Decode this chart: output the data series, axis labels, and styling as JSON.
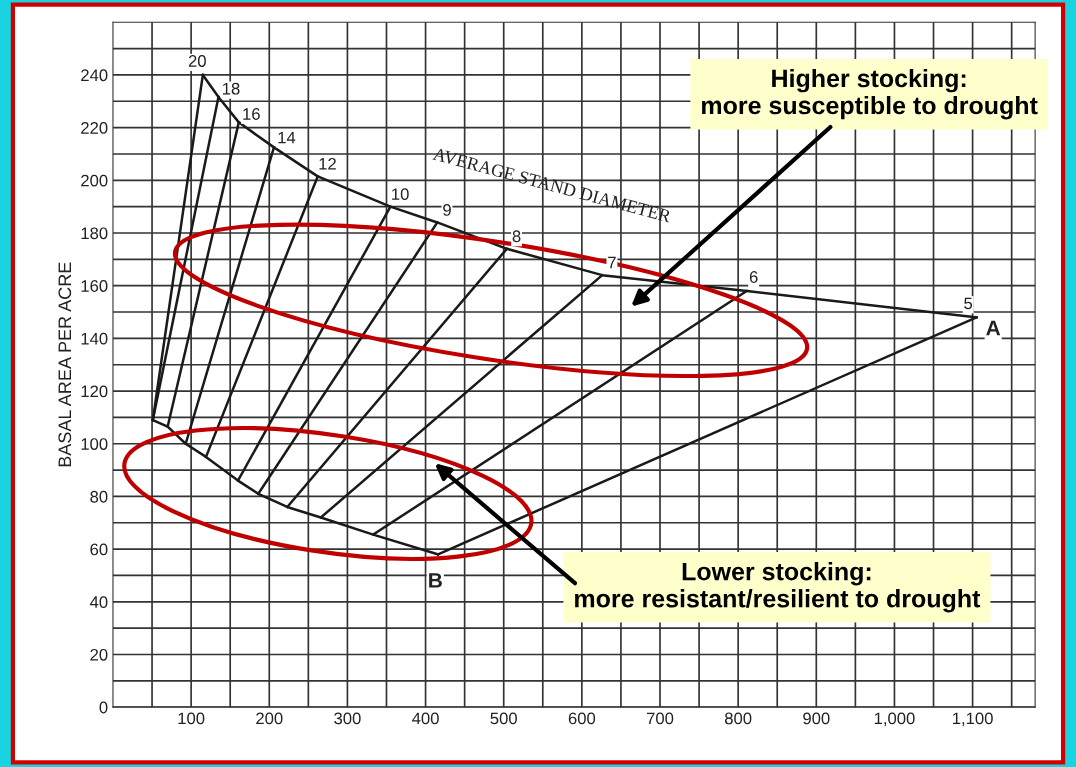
{
  "chart_data": {
    "type": "line",
    "ylabel": "BASAL AREA PER ACRE",
    "xlim": [
      0,
      1180
    ],
    "ylim": [
      0,
      260
    ],
    "xticks": [
      {
        "value": 50,
        "label": null
      },
      100,
      {
        "value": 150,
        "label": null
      },
      200,
      {
        "value": 250,
        "label": null
      },
      300,
      {
        "value": 350,
        "label": null
      },
      400,
      {
        "value": 450,
        "label": null
      },
      500,
      {
        "value": 550,
        "label": null
      },
      600,
      {
        "value": 650,
        "label": null
      },
      700,
      {
        "value": 750,
        "label": null
      },
      800,
      {
        "value": 850,
        "label": null
      },
      900,
      {
        "value": 950,
        "label": null
      },
      {
        "value": 1000,
        "label": "1,000"
      },
      {
        "value": 1050,
        "label": null
      },
      {
        "value": 1100,
        "label": "1,100"
      },
      {
        "value": 1150,
        "label": null
      }
    ],
    "yticks": [
      0,
      {
        "value": 10,
        "label": null
      },
      20,
      {
        "value": 30,
        "label": null
      },
      40,
      {
        "value": 50,
        "label": null
      },
      60,
      {
        "value": 70,
        "label": null
      },
      80,
      {
        "value": 90,
        "label": null
      },
      100,
      {
        "value": 110,
        "label": null
      },
      120,
      {
        "value": 130,
        "label": null
      },
      140,
      {
        "value": 150,
        "label": null
      },
      160,
      {
        "value": 170,
        "label": null
      },
      180,
      {
        "value": 190,
        "label": null
      },
      200,
      {
        "value": 210,
        "label": null
      },
      220,
      {
        "value": 230,
        "label": null
      },
      240,
      {
        "value": 250,
        "label": null
      }
    ],
    "grid": true,
    "marker": "none",
    "line_style": "solid",
    "legend": false,
    "series": [
      {
        "color": "#1a1a1a",
        "x": [
          115,
          135,
          161,
          206,
          262,
          355,
          415,
          504,
          626,
          811,
          1105
        ],
        "values": [
          240,
          231.6,
          222,
          212.5,
          201.5,
          190,
          184,
          174,
          164,
          158,
          148
        ]
      },
      {
        "color": "#1a1a1a",
        "x": [
          51,
          70,
          93,
          119,
          160,
          186,
          223,
          266,
          333,
          416
        ],
        "values": [
          109,
          106.5,
          100,
          95,
          86,
          81,
          76,
          72,
          65.5,
          58
        ]
      },
      {
        "color": "#1a1a1a",
        "x": [
          416,
          1105
        ],
        "values": [
          58,
          148
        ]
      },
      {
        "color": "#1a1a1a",
        "x": [
          51,
          115
        ],
        "values": [
          109,
          240
        ]
      },
      {
        "color": "#1a1a1a",
        "x": [
          51,
          135
        ],
        "values": [
          109,
          231.6
        ]
      },
      {
        "color": "#1a1a1a",
        "x": [
          70,
          161
        ],
        "values": [
          106.5,
          222
        ]
      },
      {
        "color": "#1a1a1a",
        "x": [
          93,
          206
        ],
        "values": [
          100,
          212.5
        ]
      },
      {
        "color": "#1a1a1a",
        "x": [
          119,
          262
        ],
        "values": [
          95,
          201.5
        ]
      },
      {
        "color": "#1a1a1a",
        "x": [
          160,
          355
        ],
        "values": [
          86,
          190
        ]
      },
      {
        "color": "#1a1a1a",
        "x": [
          186,
          415
        ],
        "values": [
          81,
          184
        ]
      },
      {
        "color": "#1a1a1a",
        "x": [
          223,
          504
        ],
        "values": [
          76,
          174
        ]
      },
      {
        "color": "#1a1a1a",
        "x": [
          266,
          626
        ],
        "values": [
          72,
          164
        ]
      },
      {
        "color": "#1a1a1a",
        "x": [
          333,
          811
        ],
        "values": [
          65.5,
          158
        ]
      }
    ],
    "annotations": [
      {
        "text": "20",
        "x": 115,
        "y": 240
      },
      {
        "text": "18",
        "x": 135,
        "y": 231.6
      },
      {
        "text": "16",
        "x": 161,
        "y": 222
      },
      {
        "text": "14",
        "x": 206,
        "y": 212.5
      },
      {
        "text": "12",
        "x": 262,
        "y": 201.5
      },
      {
        "text": "10",
        "x": 355,
        "y": 190
      },
      {
        "text": "9",
        "x": 415,
        "y": 184
      },
      {
        "text": "8",
        "x": 504,
        "y": 174
      },
      {
        "text": "7",
        "x": 626,
        "y": 164
      },
      {
        "text": "6",
        "x": 811,
        "y": 158
      },
      {
        "text": "5",
        "x": 1105,
        "y": 148
      },
      {
        "text": "A",
        "x": 1105,
        "y": 148
      },
      {
        "text": "B",
        "x": 416,
        "y": 58
      },
      "AVERAGE STAND DIAMETER",
      "Higher stocking:\nmore susceptible to drought",
      "Lower stocking:\nmore resistant/resilient to drought"
    ]
  }
}
